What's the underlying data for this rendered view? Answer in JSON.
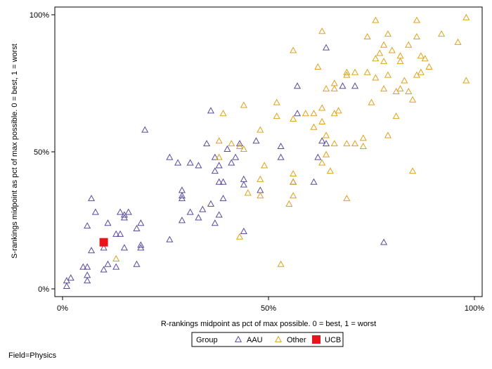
{
  "chart_data": {
    "type": "scatter",
    "title": "",
    "xlabel": "R-rankings midpoint as pct of max possible.  0 = best, 1 = worst",
    "ylabel": "S-rankings midpoint as pct of max possible.  0 = best, 1 = worst",
    "xlim": [
      -0.02,
      1.02
    ],
    "ylim": [
      -0.02,
      1.02
    ],
    "x_ticks": [
      {
        "value": 0,
        "label": "0%"
      },
      {
        "value": 0.5,
        "label": "50%"
      },
      {
        "value": 1,
        "label": "100%"
      }
    ],
    "y_ticks": [
      {
        "value": 0,
        "label": "0%"
      },
      {
        "value": 0.5,
        "label": "50%"
      },
      {
        "value": 1,
        "label": "100%"
      }
    ],
    "grid": false,
    "legend": {
      "title": "Group",
      "placement": "bottom-center",
      "entries": [
        "AAU",
        "Other",
        "UCB"
      ]
    },
    "series": [
      {
        "name": "AAU",
        "marker": "triangle-open",
        "color": "#5B4A9E",
        "points": [
          [
            0.01,
            0.01
          ],
          [
            0.01,
            0.03
          ],
          [
            0.02,
            0.04
          ],
          [
            0.05,
            0.08
          ],
          [
            0.06,
            0.08
          ],
          [
            0.06,
            0.03
          ],
          [
            0.06,
            0.05
          ],
          [
            0.06,
            0.23
          ],
          [
            0.07,
            0.33
          ],
          [
            0.07,
            0.14
          ],
          [
            0.08,
            0.28
          ],
          [
            0.1,
            0.07
          ],
          [
            0.1,
            0.15
          ],
          [
            0.11,
            0.09
          ],
          [
            0.11,
            0.24
          ],
          [
            0.13,
            0.08
          ],
          [
            0.13,
            0.2
          ],
          [
            0.14,
            0.28
          ],
          [
            0.14,
            0.2
          ],
          [
            0.15,
            0.26
          ],
          [
            0.15,
            0.27
          ],
          [
            0.15,
            0.15
          ],
          [
            0.16,
            0.28
          ],
          [
            0.18,
            0.09
          ],
          [
            0.18,
            0.22
          ],
          [
            0.19,
            0.24
          ],
          [
            0.19,
            0.16
          ],
          [
            0.19,
            0.15
          ],
          [
            0.2,
            0.58
          ],
          [
            0.26,
            0.18
          ],
          [
            0.26,
            0.48
          ],
          [
            0.28,
            0.46
          ],
          [
            0.29,
            0.34
          ],
          [
            0.29,
            0.36
          ],
          [
            0.29,
            0.33
          ],
          [
            0.29,
            0.25
          ],
          [
            0.31,
            0.46
          ],
          [
            0.31,
            0.28
          ],
          [
            0.33,
            0.45
          ],
          [
            0.33,
            0.26
          ],
          [
            0.34,
            0.29
          ],
          [
            0.35,
            0.53
          ],
          [
            0.36,
            0.31
          ],
          [
            0.36,
            0.65
          ],
          [
            0.37,
            0.24
          ],
          [
            0.37,
            0.43
          ],
          [
            0.37,
            0.48
          ],
          [
            0.38,
            0.27
          ],
          [
            0.38,
            0.45
          ],
          [
            0.38,
            0.39
          ],
          [
            0.39,
            0.39
          ],
          [
            0.39,
            0.33
          ],
          [
            0.4,
            0.51
          ],
          [
            0.41,
            0.46
          ],
          [
            0.42,
            0.48
          ],
          [
            0.43,
            0.53
          ],
          [
            0.44,
            0.38
          ],
          [
            0.44,
            0.4
          ],
          [
            0.44,
            0.21
          ],
          [
            0.47,
            0.54
          ],
          [
            0.48,
            0.36
          ],
          [
            0.53,
            0.52
          ],
          [
            0.53,
            0.48
          ],
          [
            0.56,
            0.39
          ],
          [
            0.57,
            0.74
          ],
          [
            0.57,
            0.64
          ],
          [
            0.61,
            0.39
          ],
          [
            0.62,
            0.48
          ],
          [
            0.63,
            0.54
          ],
          [
            0.64,
            0.88
          ],
          [
            0.64,
            0.53
          ],
          [
            0.68,
            0.74
          ],
          [
            0.71,
            0.74
          ],
          [
            0.78,
            0.17
          ]
        ]
      },
      {
        "name": "Other",
        "marker": "triangle-open",
        "color": "#E0A21D",
        "points": [
          [
            0.13,
            0.11
          ],
          [
            0.38,
            0.54
          ],
          [
            0.38,
            0.48
          ],
          [
            0.39,
            0.64
          ],
          [
            0.41,
            0.53
          ],
          [
            0.43,
            0.19
          ],
          [
            0.43,
            0.52
          ],
          [
            0.44,
            0.67
          ],
          [
            0.44,
            0.51
          ],
          [
            0.45,
            0.35
          ],
          [
            0.48,
            0.58
          ],
          [
            0.48,
            0.4
          ],
          [
            0.48,
            0.34
          ],
          [
            0.49,
            0.45
          ],
          [
            0.52,
            0.63
          ],
          [
            0.52,
            0.68
          ],
          [
            0.53,
            0.09
          ],
          [
            0.55,
            0.31
          ],
          [
            0.56,
            0.87
          ],
          [
            0.56,
            0.62
          ],
          [
            0.56,
            0.42
          ],
          [
            0.56,
            0.39
          ],
          [
            0.56,
            0.34
          ],
          [
            0.59,
            0.64
          ],
          [
            0.61,
            0.64
          ],
          [
            0.61,
            0.59
          ],
          [
            0.62,
            0.81
          ],
          [
            0.63,
            0.94
          ],
          [
            0.63,
            0.66
          ],
          [
            0.63,
            0.61
          ],
          [
            0.63,
            0.46
          ],
          [
            0.64,
            0.49
          ],
          [
            0.64,
            0.56
          ],
          [
            0.64,
            0.73
          ],
          [
            0.65,
            0.43
          ],
          [
            0.66,
            0.75
          ],
          [
            0.66,
            0.73
          ],
          [
            0.66,
            0.64
          ],
          [
            0.66,
            0.53
          ],
          [
            0.67,
            0.65
          ],
          [
            0.69,
            0.79
          ],
          [
            0.69,
            0.78
          ],
          [
            0.69,
            0.53
          ],
          [
            0.69,
            0.33
          ],
          [
            0.71,
            0.79
          ],
          [
            0.71,
            0.53
          ],
          [
            0.73,
            0.52
          ],
          [
            0.73,
            0.55
          ],
          [
            0.74,
            0.92
          ],
          [
            0.74,
            0.79
          ],
          [
            0.75,
            0.68
          ],
          [
            0.76,
            0.98
          ],
          [
            0.76,
            0.84
          ],
          [
            0.76,
            0.77
          ],
          [
            0.77,
            0.86
          ],
          [
            0.78,
            0.89
          ],
          [
            0.78,
            0.83
          ],
          [
            0.78,
            0.73
          ],
          [
            0.79,
            0.93
          ],
          [
            0.79,
            0.78
          ],
          [
            0.79,
            0.56
          ],
          [
            0.8,
            0.87
          ],
          [
            0.81,
            0.72
          ],
          [
            0.81,
            0.63
          ],
          [
            0.82,
            0.85
          ],
          [
            0.82,
            0.83
          ],
          [
            0.82,
            0.73
          ],
          [
            0.83,
            0.76
          ],
          [
            0.84,
            0.89
          ],
          [
            0.84,
            0.72
          ],
          [
            0.85,
            0.69
          ],
          [
            0.85,
            0.43
          ],
          [
            0.86,
            0.98
          ],
          [
            0.86,
            0.92
          ],
          [
            0.86,
            0.78
          ],
          [
            0.87,
            0.85
          ],
          [
            0.87,
            0.79
          ],
          [
            0.88,
            0.84
          ],
          [
            0.89,
            0.81
          ],
          [
            0.92,
            0.93
          ],
          [
            0.96,
            0.9
          ],
          [
            0.98,
            0.99
          ],
          [
            0.98,
            0.76
          ]
        ]
      },
      {
        "name": "UCB",
        "marker": "square-filled",
        "color": "#E8161B",
        "points": [
          [
            0.1,
            0.17
          ]
        ]
      }
    ]
  },
  "footnote": "Field=Physics"
}
